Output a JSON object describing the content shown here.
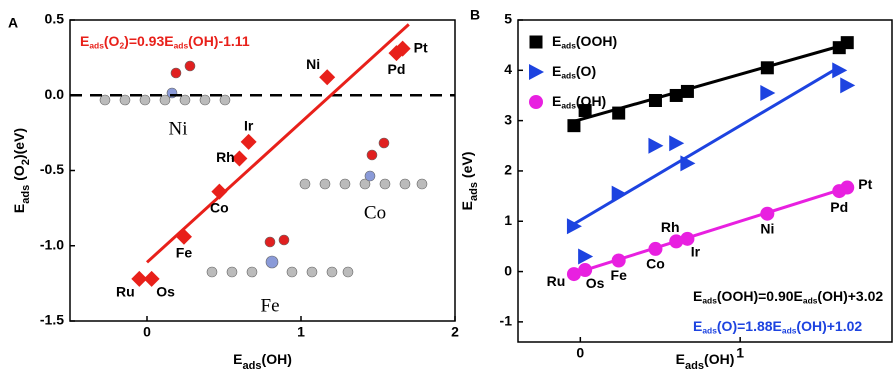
{
  "chart_data": [
    {
      "type": "scatter",
      "panel": "A",
      "x_label": [
        "E",
        "ads",
        "(OH)"
      ],
      "y_label": [
        "E",
        "ads",
        " (O",
        "2",
        ")(eV)"
      ],
      "xlim": [
        -0.5,
        2
      ],
      "xticks": [
        0,
        1,
        2
      ],
      "ylim": [
        -1.5,
        0.5
      ],
      "yticks": [
        -1.5,
        {
          "value": -1,
          "label": "-1.0"
        },
        -0.5,
        {
          "value": 0,
          "label": "0.0"
        },
        0.5
      ],
      "hline": 0,
      "categories": [
        "Ru",
        "Os",
        "Fe",
        "Co",
        "Rh",
        "Ir",
        "Ni",
        "Pd",
        "Pt"
      ],
      "x": [
        -0.05,
        0.03,
        0.24,
        0.47,
        0.6,
        0.66,
        1.17,
        1.62,
        1.66
      ],
      "series": [
        {
          "color": "#e8201a",
          "marker": "diamond",
          "values": [
            -1.22,
            -1.22,
            -0.94,
            -0.64,
            -0.42,
            -0.31,
            0.12,
            0.28,
            0.31
          ]
        }
      ],
      "fits": [
        {
          "color": "#e8201a",
          "label": [
            "E",
            "ads",
            "(O",
            "2",
            ")=0.93E",
            "ads",
            "(OH)-1.11"
          ],
          "x": [
            0,
            1.7
          ],
          "values": [
            -1.11,
            0.471
          ]
        }
      ],
      "insets": [
        "Ni",
        "Co",
        "Fe"
      ]
    },
    {
      "type": "scatter",
      "panel": "B",
      "x_label": [
        "E",
        "ads",
        "(OH)"
      ],
      "y_label": [
        "E",
        "ads",
        " (eV)"
      ],
      "xlim": [
        -0.39,
        1.95
      ],
      "xticks": [
        0,
        1
      ],
      "ylim": [
        -1.4,
        5
      ],
      "yticks": [
        -1,
        0,
        1,
        2,
        3,
        4,
        5
      ],
      "categories": [
        "Ru",
        "Os",
        "Fe",
        "Co",
        "Rh",
        "Ir",
        "Ni",
        "Pd",
        "Pt"
      ],
      "x": [
        -0.04,
        0.03,
        0.24,
        0.47,
        0.6,
        0.67,
        1.17,
        1.62,
        1.67
      ],
      "legend": "upper left",
      "series": [
        {
          "name": [
            "E",
            "ads",
            "(OOH)"
          ],
          "color": "#000000",
          "marker": "square",
          "values": [
            2.9,
            3.2,
            3.15,
            3.4,
            3.5,
            3.58,
            4.05,
            4.45,
            4.55
          ]
        },
        {
          "name": [
            "E",
            "ads",
            "(O)"
          ],
          "color": "#1d43e0",
          "marker": "triangle",
          "values": [
            0.9,
            0.3,
            1.55,
            2.5,
            2.55,
            2.15,
            3.55,
            4.0,
            3.7
          ]
        },
        {
          "name": [
            "E",
            "ads",
            "(OH)"
          ],
          "color": "#e820e0",
          "marker": "circle",
          "values": [
            -0.05,
            0.03,
            0.22,
            0.45,
            0.6,
            0.65,
            1.15,
            1.6,
            1.67
          ]
        }
      ],
      "fits": [
        {
          "color": "#000000",
          "label": [
            "E",
            "ads",
            "(OOH)=0.90E",
            "ads",
            "(OH)+3.02"
          ],
          "x": [
            -0.03,
            1.67
          ],
          "values": [
            2.993,
            4.523
          ]
        },
        {
          "color": "#1d43e0",
          "label": [
            "E",
            "ads",
            "(O)=1.88E",
            "ads",
            "(OH)+1.02"
          ],
          "x": [
            -0.04,
            1.6
          ],
          "values": [
            0.945,
            4.028
          ]
        },
        {
          "color": "#e820e0",
          "x": [
            -0.05,
            1.67
          ],
          "values": [
            -0.05,
            1.67
          ]
        }
      ]
    }
  ]
}
